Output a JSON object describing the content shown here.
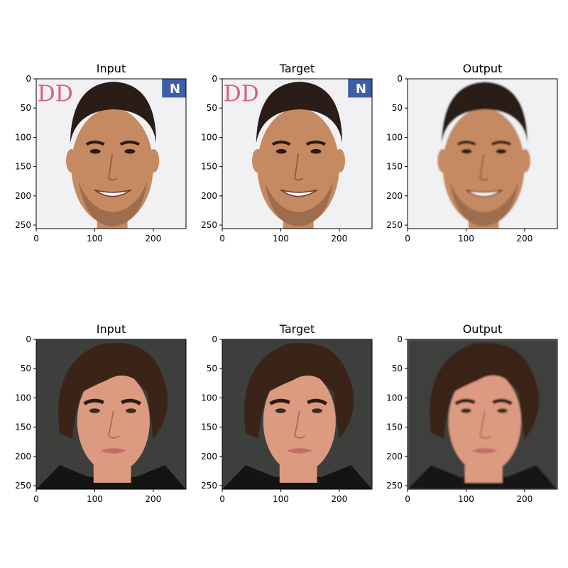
{
  "figure": {
    "rows": [
      {
        "panels": [
          {
            "title": "Input",
            "image": "bearded-man-smiling-studio-backdrop"
          },
          {
            "title": "Target",
            "image": "bearded-man-smiling-studio-backdrop"
          },
          {
            "title": "Output",
            "image": "bearded-man-smiling-reconstruction"
          }
        ]
      },
      {
        "panels": [
          {
            "title": "Input",
            "image": "man-wavy-dark-hair-dark-background"
          },
          {
            "title": "Target",
            "image": "man-wavy-dark-hair-dark-background"
          },
          {
            "title": "Output",
            "image": "man-wavy-dark-hair-reconstruction"
          }
        ]
      }
    ],
    "x_ticks": [
      "0",
      "100",
      "200"
    ],
    "y_ticks": [
      "0",
      "50",
      "100",
      "150",
      "200",
      "250"
    ]
  },
  "colors": {
    "axis": "#000000",
    "skin_row1": "#c58a62",
    "hair": "#2a1c16",
    "bg_row1": "#f1f1f3",
    "bg_row2": "#3c3f3c",
    "skin_row2": "#dc9a80"
  }
}
